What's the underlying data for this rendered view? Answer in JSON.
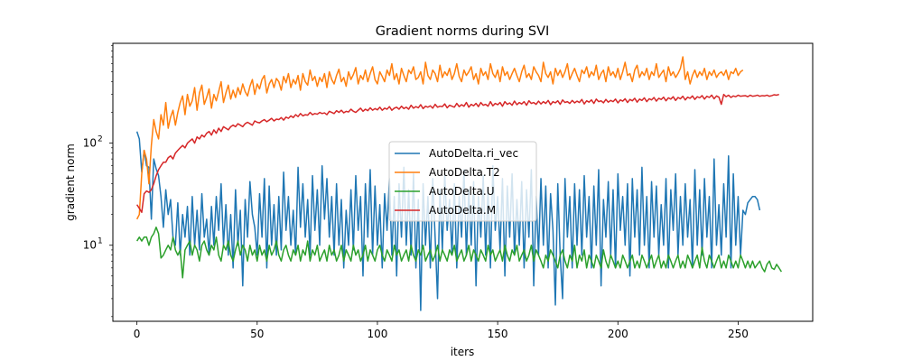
{
  "chart_data": {
    "type": "line",
    "title": "Gradient norms during SVI",
    "xlabel": "iters",
    "ylabel": "gradient norm",
    "yscale": "log",
    "xlim": [
      -10,
      281
    ],
    "ylim": [
      1.8,
      950
    ],
    "x_ticks": [
      0,
      50,
      100,
      150,
      200,
      250
    ],
    "y_ticks": [
      {
        "value": 10,
        "label": "10",
        "sup": "1"
      },
      {
        "value": 100,
        "label": "10",
        "sup": "2"
      }
    ],
    "grid": false,
    "legend_position": "center",
    "series": [
      {
        "name": "AutoDelta.ri_vec",
        "color": "#1f77b4",
        "values": [
          130,
          110,
          52,
          85,
          60,
          58,
          18,
          70,
          56,
          48,
          30,
          15,
          35,
          20,
          28,
          12,
          10,
          26,
          8,
          20,
          12,
          24,
          8,
          30,
          10,
          22,
          9,
          32,
          12,
          18,
          8,
          24,
          10,
          30,
          14,
          40,
          10,
          25,
          8,
          20,
          6,
          35,
          10,
          22,
          4,
          28,
          12,
          42,
          20,
          15,
          8,
          32,
          12,
          45,
          6,
          38,
          10,
          25,
          8,
          30,
          9,
          52,
          14,
          30,
          10,
          22,
          8,
          58,
          15,
          40,
          12,
          28,
          8,
          48,
          14,
          35,
          10,
          60,
          18,
          45,
          12,
          30,
          8,
          40,
          10,
          28,
          6,
          22,
          10,
          35,
          9,
          48,
          14,
          30,
          5,
          40,
          12,
          55,
          8,
          38,
          10,
          25,
          6,
          32,
          14,
          45,
          8,
          30,
          5,
          40,
          12,
          58,
          10,
          35,
          8,
          50,
          6,
          28,
          2.3,
          40,
          10,
          30,
          6,
          45,
          12,
          3,
          35,
          9,
          50,
          14,
          28,
          8,
          40,
          6,
          30,
          12,
          55,
          8,
          35,
          10,
          42,
          4,
          30,
          12,
          48,
          8,
          35,
          6,
          60,
          14,
          30,
          9,
          45,
          5,
          38,
          12,
          50,
          8,
          28,
          10,
          42,
          6,
          35,
          12,
          55,
          4,
          30,
          8,
          45,
          10,
          38,
          6,
          32,
          14,
          2.6,
          40,
          8,
          3,
          45,
          12,
          30,
          6,
          40,
          10,
          35,
          8,
          48,
          12,
          30,
          6,
          38,
          10,
          55,
          4,
          28,
          12,
          42,
          8,
          35,
          6,
          50,
          14,
          30,
          10,
          40,
          5,
          45,
          12,
          35,
          8,
          58,
          10,
          30,
          6,
          42,
          12,
          38,
          8,
          25,
          10,
          45,
          6,
          35,
          14,
          50,
          8,
          30,
          10,
          40,
          12,
          28,
          6,
          55,
          10,
          35,
          8,
          45,
          12,
          30,
          6,
          70,
          10,
          25,
          8,
          40,
          12,
          75,
          6,
          50,
          10,
          30,
          8,
          22,
          20,
          26,
          28,
          30,
          30,
          28,
          22
        ]
      },
      {
        "name": "AutoDelta.T2",
        "color": "#ff7f0e",
        "values": [
          18,
          20,
          50,
          85,
          70,
          40,
          95,
          170,
          130,
          110,
          190,
          150,
          250,
          140,
          180,
          210,
          150,
          200,
          250,
          290,
          190,
          300,
          230,
          260,
          350,
          210,
          310,
          370,
          240,
          280,
          340,
          220,
          300,
          260,
          320,
          400,
          250,
          310,
          370,
          270,
          330,
          280,
          350,
          300,
          380,
          320,
          290,
          360,
          420,
          300,
          380,
          340,
          420,
          460,
          310,
          380,
          420,
          350,
          430,
          400,
          330,
          450,
          390,
          480,
          350,
          420,
          380,
          460,
          330,
          480,
          400,
          370,
          520,
          410,
          450,
          360,
          440,
          400,
          480,
          350,
          500,
          420,
          380,
          460,
          530,
          400,
          440,
          360,
          500,
          420,
          470,
          550,
          380,
          460,
          420,
          520,
          400,
          480,
          560,
          420,
          380,
          500,
          450,
          400,
          520,
          460,
          600,
          420,
          480,
          380,
          540,
          460,
          400,
          520,
          480,
          560,
          420,
          440,
          500,
          380,
          620,
          460,
          420,
          520,
          480,
          400,
          580,
          440,
          500,
          460,
          540,
          420,
          480,
          600,
          450,
          400,
          520,
          460,
          500,
          560,
          420,
          480,
          380,
          540,
          460,
          500,
          420,
          600,
          480,
          440,
          520,
          400,
          560,
          460,
          500,
          420,
          480,
          540,
          460,
          400,
          500,
          580,
          440,
          480,
          420,
          560,
          500,
          460,
          400,
          620,
          480,
          440,
          500,
          380,
          540,
          460,
          520,
          440,
          500,
          600,
          420,
          480,
          540,
          460,
          400,
          520,
          480,
          560,
          440,
          500,
          460,
          580,
          420,
          480,
          520,
          400,
          560,
          460,
          500,
          440,
          540,
          420,
          500,
          620,
          460,
          480,
          400,
          520,
          580,
          440,
          500,
          460,
          540,
          420,
          500,
          460,
          600,
          440,
          480,
          520,
          400,
          560,
          460,
          500,
          440,
          480,
          540,
          700,
          420,
          500,
          380,
          460,
          520,
          440,
          500,
          460,
          540,
          420,
          500,
          460,
          520,
          440,
          480,
          500,
          460,
          520,
          420,
          500,
          480,
          540,
          460,
          500,
          520
        ]
      },
      {
        "name": "AutoDelta.U",
        "color": "#2ca02c",
        "values": [
          11,
          12,
          11,
          12,
          12,
          10,
          12,
          13,
          15,
          13,
          7.5,
          8,
          9,
          10,
          9,
          12,
          9,
          8,
          9,
          4.8,
          9,
          10,
          11,
          8,
          10,
          9,
          7,
          10,
          11,
          9,
          8,
          10,
          9,
          12,
          8,
          7,
          10,
          9,
          11,
          8,
          7,
          9,
          11,
          8,
          10,
          9,
          7,
          10,
          8,
          9,
          7,
          10,
          8,
          9,
          7,
          10,
          8,
          9,
          11,
          8,
          7,
          9,
          10,
          8,
          7,
          9,
          8,
          10,
          7,
          9,
          8,
          11,
          7,
          9,
          8,
          10,
          7,
          8,
          9,
          7,
          10,
          8,
          9,
          7,
          8,
          10,
          7,
          9,
          8,
          7,
          10,
          8,
          9,
          7,
          8,
          10,
          7,
          9,
          8,
          7,
          9,
          10,
          8,
          7,
          9,
          8,
          7,
          10,
          8,
          9,
          7,
          8,
          9,
          7,
          10,
          8,
          7,
          9,
          8,
          10,
          7,
          8,
          9,
          7,
          8,
          10,
          7,
          9,
          8,
          7,
          9,
          8,
          10,
          7,
          8,
          9,
          7,
          8,
          10,
          7,
          9,
          8,
          7,
          9,
          8,
          7,
          10,
          8,
          9,
          7,
          8,
          9,
          7,
          10,
          8,
          7,
          9,
          8,
          10,
          7,
          8,
          9,
          7,
          8,
          10,
          7,
          9,
          8,
          7,
          6,
          8,
          7,
          9,
          8,
          7,
          6,
          8,
          9,
          7,
          6,
          8,
          7,
          10,
          6,
          8,
          7,
          9,
          6,
          8,
          7,
          6,
          8,
          7,
          6,
          9,
          7,
          6,
          8,
          7,
          6,
          7,
          6,
          8,
          7,
          6,
          7,
          8,
          6,
          7,
          6,
          8,
          7,
          6,
          7,
          8,
          6,
          7,
          8,
          6,
          7,
          6,
          8,
          7,
          6,
          7,
          8,
          6,
          7,
          6,
          8,
          7,
          6,
          7,
          8,
          6,
          9.5,
          7,
          6,
          8,
          7,
          6,
          7,
          8,
          6,
          7,
          6,
          8,
          7,
          6,
          7,
          6,
          8,
          7,
          6,
          7,
          6,
          7,
          6,
          6.5,
          7,
          6,
          5.5,
          6.5,
          7,
          6,
          5.8,
          6.5,
          6,
          5.5
        ]
      },
      {
        "name": "AutoDelta.M",
        "color": "#d62728",
        "values": [
          25,
          23,
          21,
          32,
          34,
          33,
          35,
          40,
          48,
          55,
          60,
          65,
          65,
          72,
          75,
          70,
          80,
          85,
          90,
          95,
          90,
          100,
          105,
          110,
          100,
          115,
          110,
          120,
          115,
          125,
          130,
          120,
          135,
          125,
          140,
          130,
          145,
          140,
          135,
          145,
          150,
          145,
          155,
          150,
          145,
          155,
          160,
          155,
          150,
          165,
          160,
          158,
          165,
          170,
          162,
          168,
          175,
          165,
          172,
          170,
          178,
          168,
          180,
          175,
          185,
          178,
          190,
          182,
          195,
          185,
          190,
          188,
          200,
          190,
          195,
          192,
          200,
          195,
          198,
          190,
          205,
          200,
          195,
          208,
          200,
          210,
          198,
          205,
          202,
          215,
          205,
          200,
          210,
          220,
          205,
          215,
          208,
          222,
          210,
          218,
          212,
          225,
          210,
          220,
          215,
          228,
          210,
          220,
          225,
          215,
          230,
          218,
          225,
          215,
          235,
          220,
          228,
          222,
          238,
          218,
          230,
          225,
          232,
          220,
          240,
          225,
          230,
          228,
          242,
          222,
          235,
          230,
          225,
          245,
          228,
          238,
          230,
          250,
          225,
          240,
          232,
          245,
          228,
          250,
          235,
          240,
          230,
          255,
          232,
          245,
          238,
          250,
          230,
          255,
          240,
          248,
          235,
          258,
          238,
          250,
          242,
          255,
          235,
          260,
          245,
          250,
          240,
          258,
          242,
          255,
          245,
          262,
          238,
          255,
          248,
          260,
          240,
          265,
          250,
          255,
          245,
          262,
          248,
          258,
          250,
          268,
          242,
          260,
          252,
          265,
          245,
          270,
          255,
          260,
          248,
          268,
          252,
          262,
          255,
          270,
          248,
          265,
          258,
          272,
          250,
          268,
          260,
          275,
          252,
          270,
          262,
          278,
          255,
          272,
          265,
          280,
          258,
          275,
          268,
          282,
          260,
          278,
          270,
          285,
          262,
          280,
          272,
          288,
          265,
          282,
          275,
          290,
          268,
          285,
          278,
          292,
          270,
          288,
          280,
          295,
          272,
          290,
          282,
          240,
          300,
          285,
          295,
          280,
          290,
          285,
          295,
          288,
          290,
          292,
          285,
          295,
          288,
          290,
          295,
          288,
          292,
          290,
          295,
          288,
          292,
          298,
          295,
          300
        ]
      }
    ]
  }
}
